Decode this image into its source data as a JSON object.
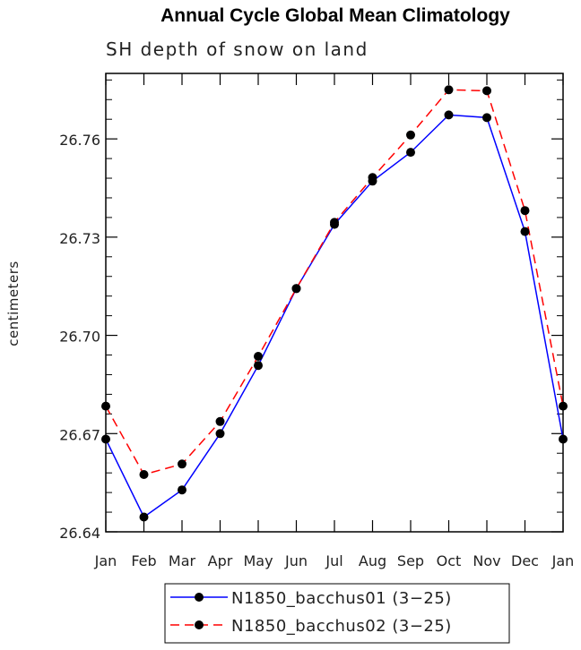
{
  "chart_data": {
    "type": "line",
    "title": "Annual Cycle Global Mean Climatology",
    "subtitle": "SH depth of snow on land",
    "xlabel": "",
    "ylabel": "centimeters",
    "categories": [
      "Jan",
      "Feb",
      "Mar",
      "Apr",
      "May",
      "Jun",
      "Jul",
      "Aug",
      "Sep",
      "Oct",
      "Nov",
      "Dec",
      "Jan"
    ],
    "ylim": [
      26.64,
      26.78
    ],
    "yticks": [
      "26.64",
      "26.67",
      "26.70",
      "26.73",
      "26.76"
    ],
    "grid": false,
    "legend_position": "bottom",
    "series": [
      {
        "name": "N1850_bacchus01 (3−25)",
        "color": "#0000ff",
        "dash": "solid",
        "values": [
          26.6683,
          26.6445,
          26.6528,
          26.67,
          26.6908,
          26.7143,
          26.7339,
          26.7471,
          26.7559,
          26.7673,
          26.7665,
          26.7317,
          26.6683
        ]
      },
      {
        "name": "N1850_bacchus02 (3−25)",
        "color": "#ff0000",
        "dash": "dashed",
        "values": [
          26.6784,
          26.6575,
          26.6607,
          26.6737,
          26.6936,
          26.7143,
          26.7345,
          26.7482,
          26.7612,
          26.775,
          26.7747,
          26.7381,
          26.6784
        ]
      }
    ]
  }
}
